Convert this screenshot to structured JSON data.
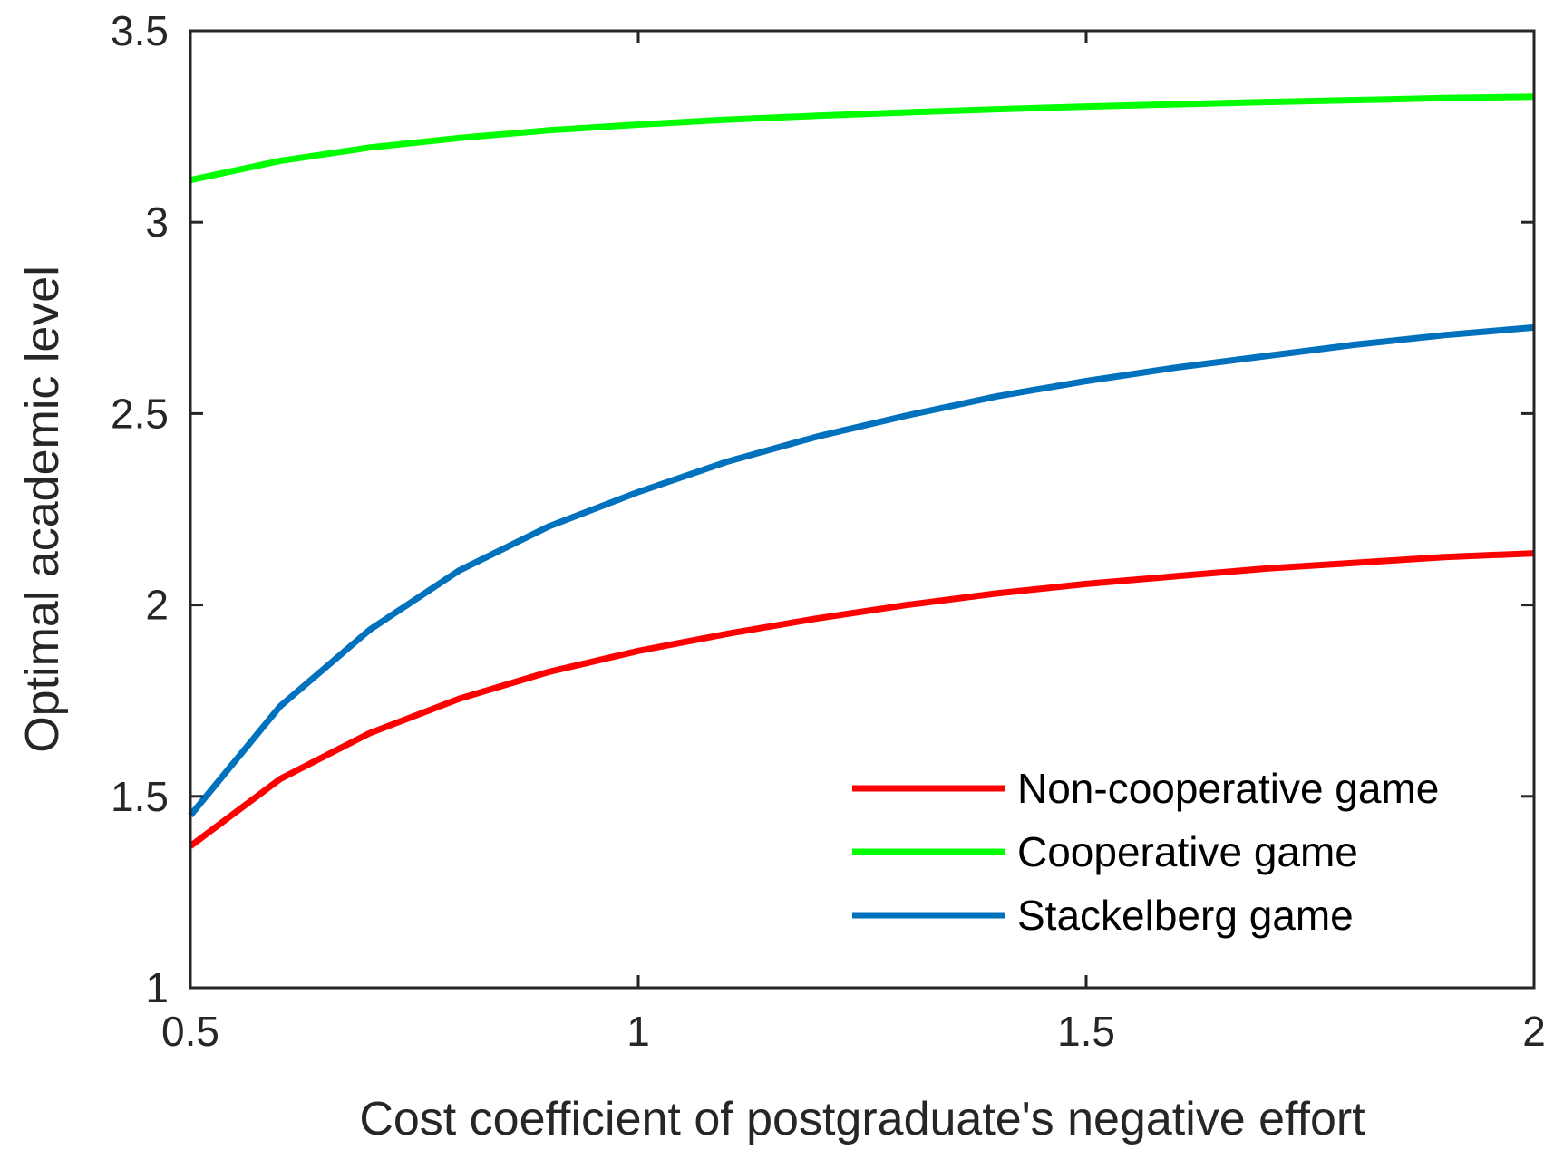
{
  "chart_data": {
    "type": "line",
    "title": "",
    "xlabel": "Cost coefficient of postgraduate's negative effort",
    "ylabel": "Optimal academic level",
    "xlim": [
      0.5,
      2
    ],
    "ylim": [
      1,
      3.5
    ],
    "xticks": [
      0.5,
      1,
      1.5,
      2
    ],
    "xtick_labels": [
      "0.5",
      "1",
      "1.5",
      "2"
    ],
    "yticks": [
      1,
      1.5,
      2,
      2.5,
      3,
      3.5
    ],
    "ytick_labels": [
      "1",
      "1.5",
      "2",
      "2.5",
      "3",
      "3.5"
    ],
    "grid": false,
    "legend_position": "bottom-right",
    "x": [
      0.5,
      0.6,
      0.7,
      0.8,
      0.9,
      1.0,
      1.1,
      1.2,
      1.3,
      1.4,
      1.5,
      1.6,
      1.7,
      1.8,
      1.9,
      2.0
    ],
    "series": [
      {
        "name": "Non-cooperative game",
        "color": "#ff0000",
        "values": [
          1.37,
          1.545,
          1.665,
          1.755,
          1.825,
          1.88,
          1.925,
          1.965,
          2.0,
          2.03,
          2.055,
          2.075,
          2.095,
          2.11,
          2.125,
          2.135
        ]
      },
      {
        "name": "Cooperative game",
        "color": "#00ff00",
        "values": [
          3.11,
          3.16,
          3.195,
          3.22,
          3.24,
          3.255,
          3.268,
          3.278,
          3.287,
          3.295,
          3.302,
          3.308,
          3.314,
          3.319,
          3.324,
          3.328
        ]
      },
      {
        "name": "Stackelberg game",
        "color": "#0072bd",
        "values": [
          1.45,
          1.735,
          1.935,
          2.09,
          2.205,
          2.295,
          2.375,
          2.44,
          2.495,
          2.545,
          2.585,
          2.62,
          2.65,
          2.68,
          2.705,
          2.725
        ]
      }
    ]
  }
}
